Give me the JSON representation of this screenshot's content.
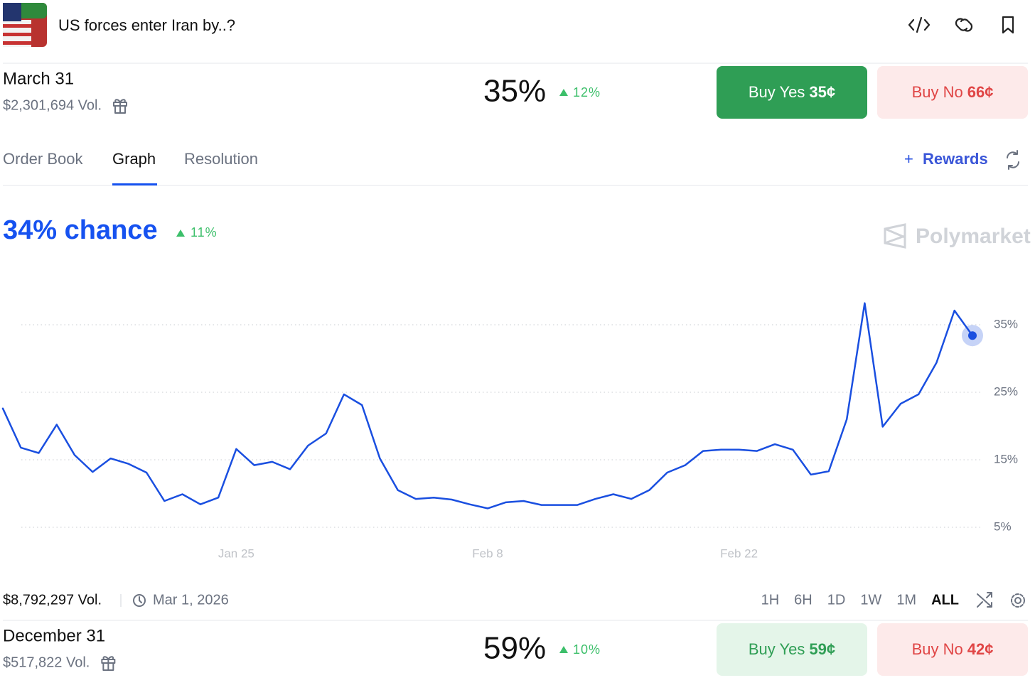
{
  "header": {
    "title": "US forces enter Iran by..?"
  },
  "markets": [
    {
      "name": "March 31",
      "volume": "$2,301,694 Vol.",
      "chance": "35%",
      "change": "12%",
      "buy_yes": "Buy Yes",
      "yes_price": "35¢",
      "buy_no": "Buy No",
      "no_price": "66¢"
    },
    {
      "name": "December 31",
      "volume": "$517,822 Vol.",
      "chance": "59%",
      "change": "10%",
      "buy_yes": "Buy Yes",
      "yes_price": "59¢",
      "buy_no": "Buy No",
      "no_price": "42¢"
    }
  ],
  "tabs": [
    "Order Book",
    "Graph",
    "Resolution"
  ],
  "active_tab": "Graph",
  "rewards": "Rewards",
  "chart_data": {
    "type": "line",
    "title": "34% chance",
    "change": "11%",
    "watermark": "Polymarket",
    "x": [
      "Jan 12",
      "Jan 13",
      "Jan 14",
      "Jan 15",
      "Jan 16",
      "Jan 17",
      "Jan 18",
      "Jan 19",
      "Jan 20",
      "Jan 21",
      "Jan 22",
      "Jan 23",
      "Jan 24",
      "Jan 25",
      "Jan 26",
      "Jan 27",
      "Jan 28",
      "Jan 29",
      "Jan 30",
      "Jan 31",
      "Feb 1",
      "Feb 2",
      "Feb 3",
      "Feb 4",
      "Feb 5",
      "Feb 6",
      "Feb 7",
      "Feb 8",
      "Feb 9",
      "Feb 10",
      "Feb 11",
      "Feb 12",
      "Feb 13",
      "Feb 14",
      "Feb 15",
      "Feb 16",
      "Feb 17",
      "Feb 18",
      "Feb 19",
      "Feb 20",
      "Feb 21",
      "Feb 22",
      "Feb 23",
      "Feb 24",
      "Feb 25",
      "Feb 26",
      "Feb 27",
      "Feb 28",
      "Mar 1",
      "Mar 2",
      "Mar 3",
      "Mar 4",
      "Mar 5",
      "Mar 6",
      "Mar 7"
    ],
    "values": [
      22.6,
      16.8,
      16,
      20.2,
      15.7,
      13.2,
      15.2,
      14.4,
      13.1,
      8.9,
      9.9,
      8.4,
      9.4,
      16.6,
      14.2,
      14.7,
      13.6,
      17.1,
      18.9,
      24.7,
      23.1,
      15.2,
      10.5,
      9.2,
      9.4,
      9.1,
      8.4,
      7.8,
      8.7,
      8.9,
      8.3,
      8.3,
      8.3,
      9.2,
      9.9,
      9.2,
      10.5,
      13.1,
      14.2,
      16.3,
      16.5,
      16.5,
      16.3,
      17.3,
      16.5,
      12.8,
      13.3,
      21,
      38.2,
      19.9,
      23.3,
      24.7,
      29.4,
      37.1,
      33.4
    ],
    "color": "#1a4fe0",
    "ylim": [
      1,
      41
    ],
    "yticks": [
      {
        "value": 5,
        "label": "5%"
      },
      {
        "value": 15,
        "label": "15%"
      },
      {
        "value": 25,
        "label": "25%"
      },
      {
        "value": 35,
        "label": "35%"
      }
    ],
    "xticks": [
      "Jan 25",
      "Feb 8",
      "Feb 22"
    ],
    "grid": true
  },
  "footer": {
    "volume": "$8,792,297 Vol.",
    "date": "Mar 1, 2026",
    "ranges": [
      "1H",
      "6H",
      "1D",
      "1W",
      "1M",
      "ALL"
    ],
    "active_range": "ALL"
  }
}
